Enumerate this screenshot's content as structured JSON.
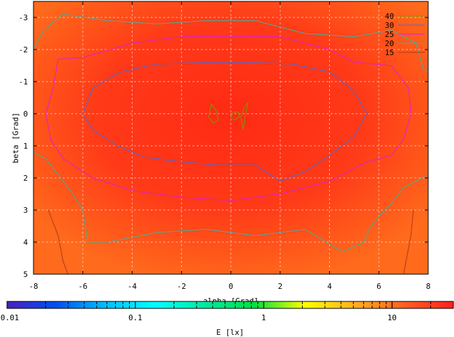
{
  "chart_data": [
    {
      "type": "heatmap",
      "title": "",
      "xlabel": "alpha [Grad]",
      "ylabel": "beta [Grad]",
      "xlim": [
        -8,
        8
      ],
      "ylim": [
        5,
        -3.5
      ],
      "x_ticks": [
        "-8",
        "-6",
        "-4",
        "-2",
        "0",
        "2",
        "4",
        "6",
        "8"
      ],
      "y_ticks": [
        "-3",
        "-2",
        "-1",
        "0",
        "1",
        "2",
        "3",
        "4",
        "5"
      ],
      "grid": true,
      "background_color": "#ff4a1a",
      "legend_position": "top-right",
      "contour_levels": [
        {
          "level": "40",
          "color": "#7a9a00",
          "curves": [
            [
              [
                -0.8,
                -0.3
              ],
              [
                -0.6,
                -0.1
              ],
              [
                -0.5,
                0.2
              ],
              [
                -0.7,
                0.3
              ],
              [
                -0.9,
                0.1
              ],
              [
                -0.8,
                -0.3
              ]
            ],
            [
              [
                0.1,
                -0.05
              ],
              [
                0.3,
                -0.05
              ],
              [
                0.35,
                0.1
              ],
              [
                0.15,
                0.2
              ],
              [
                0.0,
                0.1
              ],
              [
                0.1,
                -0.05
              ]
            ],
            [
              [
                0.5,
                0.5
              ],
              [
                0.6,
                0.0
              ],
              [
                0.7,
                -0.35
              ],
              [
                0.55,
                -0.2
              ],
              [
                0.4,
                0.1
              ],
              [
                0.5,
                0.5
              ]
            ]
          ]
        },
        {
          "level": "30",
          "color": "#4a6ad8",
          "curves": [
            [
              [
                -6.0,
                0.0
              ],
              [
                -5.6,
                -0.8
              ],
              [
                -4.5,
                -1.3
              ],
              [
                -3.0,
                -1.55
              ],
              [
                -1.0,
                -1.6
              ],
              [
                0.8,
                -1.6
              ],
              [
                2.5,
                -1.55
              ],
              [
                4.0,
                -1.3
              ],
              [
                5.0,
                -0.7
              ],
              [
                5.5,
                0.0
              ],
              [
                5.0,
                0.7
              ],
              [
                4.0,
                1.3
              ],
              [
                3.0,
                1.8
              ],
              [
                2.0,
                2.1
              ],
              [
                1.0,
                1.6
              ],
              [
                -0.5,
                1.6
              ],
              [
                -2.0,
                1.5
              ],
              [
                -3.5,
                1.35
              ],
              [
                -4.6,
                1.0
              ],
              [
                -5.6,
                0.5
              ],
              [
                -6.0,
                0.0
              ]
            ]
          ]
        },
        {
          "level": "25",
          "color": "#d820d8",
          "curves": [
            [
              [
                -7.5,
                0.0
              ],
              [
                -7.2,
                -0.8
              ],
              [
                -7.0,
                -1.7
              ],
              [
                -6.0,
                -1.75
              ],
              [
                -4.0,
                -2.2
              ],
              [
                -2.0,
                -2.4
              ],
              [
                0.0,
                -2.4
              ],
              [
                2.0,
                -2.4
              ],
              [
                4.0,
                -2.0
              ],
              [
                5.0,
                -1.6
              ],
              [
                6.5,
                -1.5
              ],
              [
                7.2,
                -0.8
              ],
              [
                7.3,
                0.0
              ],
              [
                7.0,
                0.8
              ],
              [
                6.5,
                1.3
              ],
              [
                5.5,
                1.5
              ],
              [
                4.0,
                2.1
              ],
              [
                2.0,
                2.5
              ],
              [
                0.0,
                2.7
              ],
              [
                -2.0,
                2.6
              ],
              [
                -4.0,
                2.4
              ],
              [
                -5.6,
                2.0
              ],
              [
                -6.8,
                1.4
              ],
              [
                -7.3,
                0.8
              ],
              [
                -7.5,
                0.0
              ]
            ]
          ]
        },
        {
          "level": "20",
          "color": "#40b0a0",
          "curves": [
            [
              [
                -8.0,
                -2.0
              ],
              [
                -7.6,
                -2.6
              ],
              [
                -6.8,
                -3.1
              ],
              [
                -5.0,
                -2.9
              ],
              [
                -3.0,
                -2.8
              ],
              [
                -1.0,
                -2.9
              ],
              [
                1.0,
                -2.9
              ],
              [
                3.0,
                -2.5
              ],
              [
                5.0,
                -2.4
              ],
              [
                6.5,
                -2.6
              ],
              [
                7.5,
                -2.2
              ],
              [
                7.8,
                -1.4
              ],
              [
                8.0,
                -1.3
              ]
            ],
            [
              [
                -8.0,
                1.2
              ],
              [
                -7.5,
                1.4
              ],
              [
                -6.5,
                2.4
              ],
              [
                -6.0,
                3.0
              ],
              [
                -5.8,
                4.0
              ],
              [
                -5.0,
                4.0
              ],
              [
                -3.0,
                3.7
              ],
              [
                -1.0,
                3.6
              ],
              [
                1.0,
                3.8
              ],
              [
                3.0,
                3.6
              ],
              [
                4.5,
                4.3
              ],
              [
                5.4,
                4.0
              ],
              [
                5.6,
                3.6
              ],
              [
                6.0,
                3.2
              ],
              [
                6.5,
                2.8
              ],
              [
                7.0,
                2.3
              ],
              [
                7.5,
                2.1
              ],
              [
                8.0,
                1.9
              ]
            ]
          ]
        },
        {
          "level": "15",
          "color": "#b03818",
          "curves": [
            [
              [
                -7.4,
                3.0
              ],
              [
                -7.0,
                3.8
              ],
              [
                -6.8,
                4.6
              ],
              [
                -6.6,
                5.0
              ]
            ],
            [
              [
                7.4,
                3.0
              ],
              [
                7.3,
                3.8
              ],
              [
                7.1,
                4.6
              ],
              [
                7.0,
                5.0
              ]
            ]
          ]
        }
      ]
    },
    {
      "type": "colorbar",
      "xlabel": "E [lx]",
      "scale": "log",
      "range": [
        0.01,
        30
      ],
      "tick_labels": [
        "0.01",
        "0.1",
        "1",
        "10"
      ],
      "colors": [
        "#4b1fbf",
        "#0050f0",
        "#00c0ff",
        "#00ffff",
        "#00e8a0",
        "#00e040",
        "#ffff00",
        "#ffb020",
        "#ff6020",
        "#ff2020"
      ]
    }
  ]
}
